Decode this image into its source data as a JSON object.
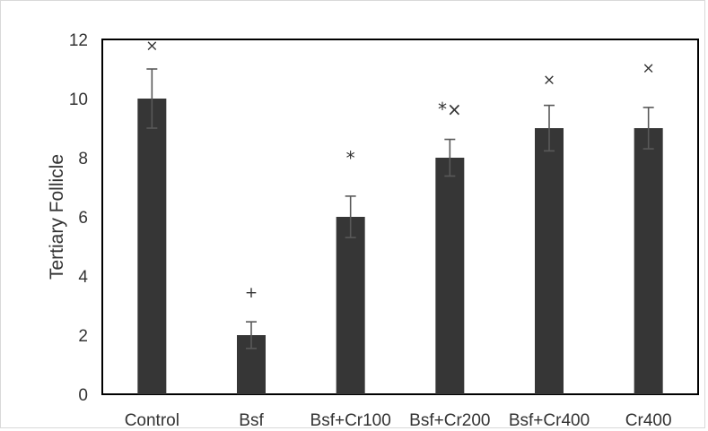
{
  "chart_data": {
    "type": "bar",
    "title": "",
    "xlabel": "",
    "ylabel": "Tertiary Follicle",
    "ylim": [
      0,
      12
    ],
    "yticks": [
      0,
      2,
      4,
      6,
      8,
      10,
      12
    ],
    "grid": false,
    "categories": [
      "Control",
      "Bsf",
      "Bsf+Cr100",
      "Bsf+Cr200",
      "Bsf+Cr400",
      "Cr400"
    ],
    "values": [
      10,
      2,
      6,
      8,
      9,
      9
    ],
    "error": [
      1.0,
      0.45,
      0.7,
      0.62,
      0.77,
      0.7
    ],
    "annotations": [
      {
        "category": "Control",
        "text": "×",
        "y": 11.8
      },
      {
        "category": "Bsf",
        "text": "+",
        "y": 3.45
      },
      {
        "category": "Bsf+Cr100",
        "text": "*",
        "y": 7.95
      },
      {
        "category": "Bsf+Cr200",
        "text": "*×",
        "y": 9.6
      },
      {
        "category": "Bsf+Cr400",
        "text": "×",
        "y": 10.65
      },
      {
        "category": "Cr400",
        "text": "×",
        "y": 11.05
      }
    ],
    "colors": {
      "bar": "#363636",
      "axis": "#000000",
      "error": "#595959",
      "text": "#333333"
    }
  }
}
